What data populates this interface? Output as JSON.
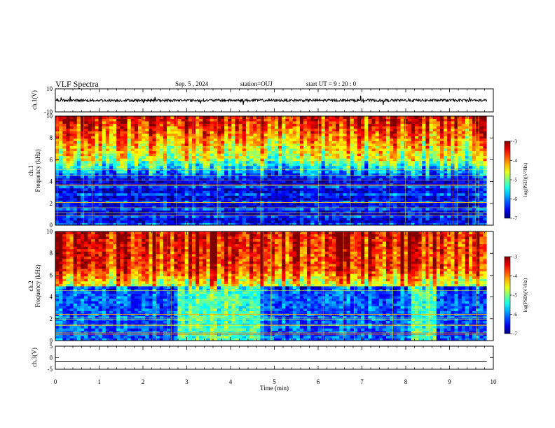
{
  "header": {
    "title": "VLF Spectra",
    "date": "Sep. 5 , 2024",
    "station": "station=OUJ",
    "start": "start  UT  =   9  : 20 : 0"
  },
  "chart_data": [
    {
      "type": "line",
      "panel": "ch1-waveform",
      "ylabel": "ch.1(V)",
      "ylim": [
        -10,
        10
      ],
      "yticks": [
        "10",
        "-10"
      ],
      "level": 0,
      "color": "#000000"
    },
    {
      "type": "heatmap",
      "panel": "ch1-spectrogram",
      "ylabel_line1": "ch.1",
      "ylabel_line2": "Frequency (kHz)",
      "ylim": [
        0,
        10
      ],
      "yticks": [
        "0",
        "2",
        "4",
        "6",
        "8",
        "10"
      ],
      "colorbar": {
        "label": "log(PSD)(V²/Hz)",
        "range": [
          -7,
          -3
        ],
        "ticks": [
          "-3",
          "-4",
          "-5",
          "-6",
          "-7"
        ]
      },
      "xlim": [
        0,
        9.85
      ]
    },
    {
      "type": "heatmap",
      "panel": "ch2-spectrogram",
      "ylabel_line1": "ch.2",
      "ylabel_line2": "Frequency (kHz)",
      "ylim": [
        0,
        10
      ],
      "yticks": [
        "0",
        "2",
        "4",
        "6",
        "8",
        "10"
      ],
      "colorbar": {
        "label": "log(PSD)(V²/Hz)",
        "range": [
          -7,
          -3
        ],
        "ticks": [
          "-3",
          "-4",
          "-5",
          "-6",
          "-7"
        ]
      },
      "xlim": [
        0,
        9.85
      ]
    },
    {
      "type": "line",
      "panel": "ch3-waveform",
      "ylabel": "ch.3(V)",
      "ylim": [
        -5,
        5
      ],
      "yticks": [
        "5",
        "0",
        "-5"
      ],
      "level": -1.5,
      "color": "#000000"
    }
  ],
  "xaxis": {
    "label": "Time (min)",
    "range": [
      0,
      10
    ],
    "ticks": [
      "0",
      "1",
      "2",
      "3",
      "4",
      "5",
      "6",
      "7",
      "8",
      "9",
      "10"
    ]
  }
}
